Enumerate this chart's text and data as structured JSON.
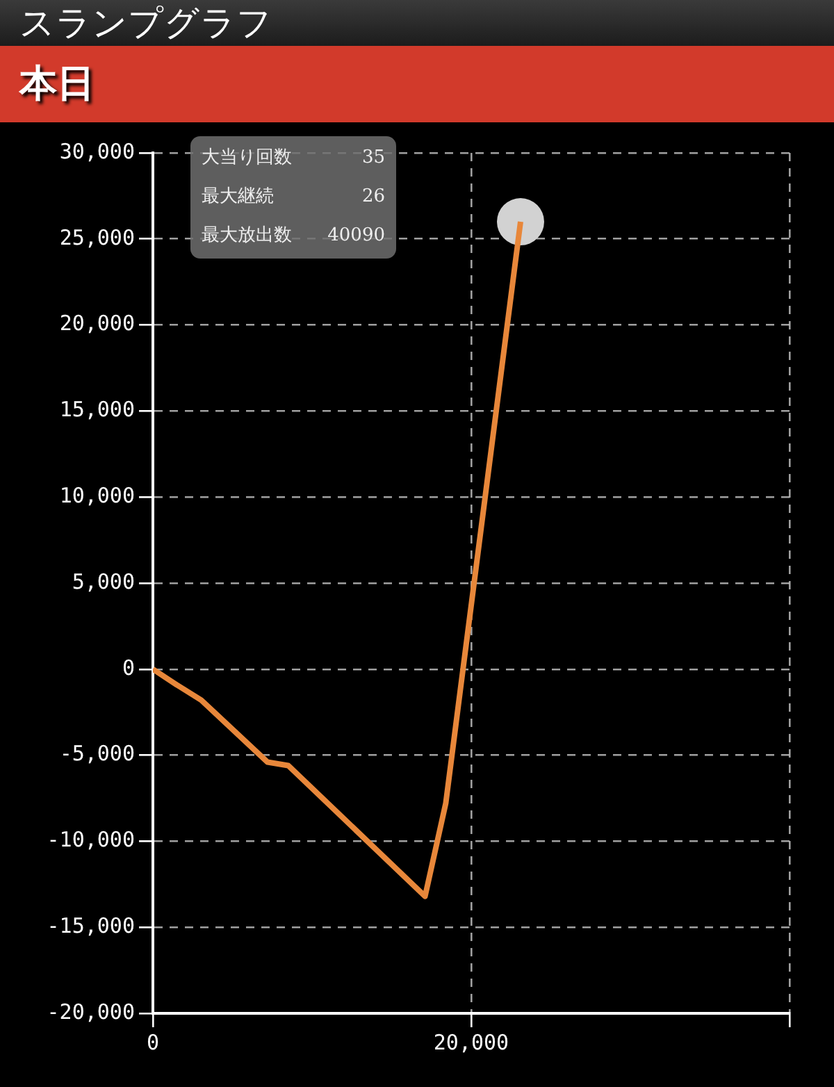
{
  "chart_data": {
    "type": "line",
    "title": "スランプグラフ",
    "subtitle": "本日",
    "annotations": [
      "大当り回数",
      "35",
      "最大継続",
      "26",
      "最大放出数",
      "40090"
    ],
    "x": [
      0,
      1480,
      3040,
      7200,
      8500,
      17100,
      18400,
      23100
    ],
    "series": [
      {
        "color": "#e8873a",
        "values": [
          0,
          -900,
          -1800,
          -5400,
          -5600,
          -13200,
          -7800,
          26000
        ]
      },
      {
        "type": "scatter",
        "color": "#d2d2d2",
        "x": [
          23100
        ],
        "values": [
          26000
        ]
      }
    ],
    "xlim": [
      0,
      40000
    ],
    "xticks": [
      0,
      {
        "value": 20000,
        "label": "20,000"
      },
      {
        "value": 40000,
        "label": null
      }
    ],
    "ylim": [
      -20000,
      30000
    ],
    "yticks": [
      {
        "value": -20000,
        "label": "-20,000"
      },
      {
        "value": -15000,
        "label": "-15,000"
      },
      {
        "value": -10000,
        "label": "-10,000"
      },
      {
        "value": -5000,
        "label": "-5,000"
      },
      0,
      {
        "value": 5000,
        "label": "5,000"
      },
      {
        "value": 10000,
        "label": "10,000"
      },
      {
        "value": 15000,
        "label": "15,000"
      },
      {
        "value": 20000,
        "label": "20,000"
      },
      {
        "value": 25000,
        "label": "25,000"
      },
      {
        "value": 30000,
        "label": "30,000"
      }
    ],
    "grid": true,
    "legend": false,
    "line_style": "solid"
  }
}
